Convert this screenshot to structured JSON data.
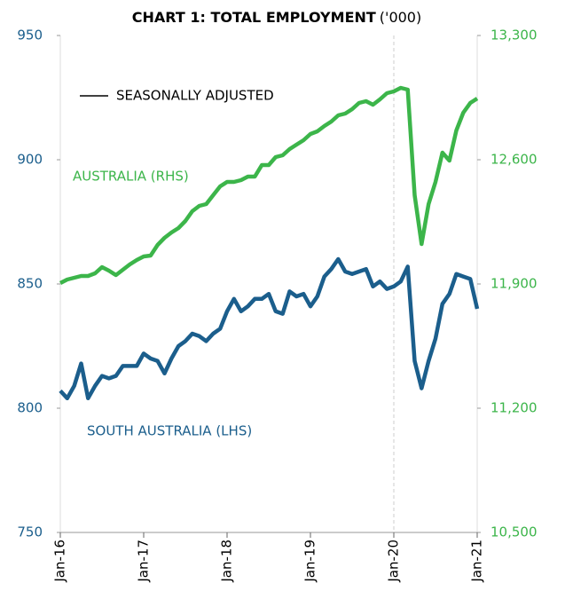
{
  "chart_data": {
    "type": "line",
    "title": "CHART 1: TOTAL EMPLOYMENT",
    "title_unit": "('000)",
    "annotation": "SEASONALLY ADJUSTED",
    "categories": [
      "Jan-16",
      null,
      null,
      null,
      null,
      null,
      null,
      null,
      null,
      null,
      null,
      null,
      "Jan-17",
      null,
      null,
      null,
      null,
      null,
      null,
      null,
      null,
      null,
      null,
      null,
      "Jan-18",
      null,
      null,
      null,
      null,
      null,
      null,
      null,
      null,
      null,
      null,
      null,
      "Jan-19",
      null,
      null,
      null,
      null,
      null,
      null,
      null,
      null,
      null,
      null,
      null,
      "Jan-20",
      null,
      null,
      null,
      null,
      null,
      null,
      null,
      null,
      null,
      null,
      null,
      "Jan-21"
    ],
    "series": [
      {
        "name": "SOUTH AUSTRALIA (LHS)",
        "color": "#1b5e8c",
        "axis": "y",
        "values": [
          807,
          804,
          809,
          818,
          804,
          809,
          813,
          812,
          813,
          817,
          817,
          817,
          822,
          820,
          819,
          814,
          820,
          825,
          827,
          830,
          829,
          827,
          830,
          832,
          839,
          844,
          839,
          841,
          844,
          844,
          846,
          839,
          838,
          847,
          845,
          846,
          841,
          845,
          853,
          856,
          860,
          855,
          854,
          855,
          856,
          849,
          851,
          848,
          849,
          851,
          857,
          819,
          808,
          819,
          828,
          842,
          846,
          854,
          853,
          852,
          840
        ]
      },
      {
        "name": "AUSTRALIA (RHS)",
        "color": "#3cb54a",
        "axis": "y2",
        "values": [
          11905,
          11925,
          11935,
          11945,
          11945,
          11960,
          11995,
          11975,
          11950,
          11980,
          12010,
          12035,
          12055,
          12060,
          12120,
          12160,
          12190,
          12215,
          12255,
          12310,
          12340,
          12350,
          12400,
          12450,
          12475,
          12475,
          12485,
          12505,
          12505,
          12570,
          12570,
          12615,
          12625,
          12660,
          12685,
          12710,
          12745,
          12760,
          12790,
          12815,
          12850,
          12860,
          12885,
          12920,
          12930,
          12910,
          12940,
          12975,
          12985,
          13005,
          12995,
          12400,
          12125,
          12350,
          12475,
          12640,
          12595,
          12765,
          12865,
          12920,
          12945
        ]
      }
    ],
    "ylim": [
      750,
      950
    ],
    "yticks": [
      750,
      800,
      850,
      900,
      950
    ],
    "y2lim": [
      10500,
      13300
    ],
    "y2ticks": [
      {
        "value": 10500,
        "label": "10,500"
      },
      {
        "value": 11200,
        "label": "11,200"
      },
      {
        "value": 11900,
        "label": "11,900"
      },
      {
        "value": 12600,
        "label": "12,600"
      },
      {
        "value": 13300,
        "label": "13,300"
      }
    ],
    "grid": false
  }
}
